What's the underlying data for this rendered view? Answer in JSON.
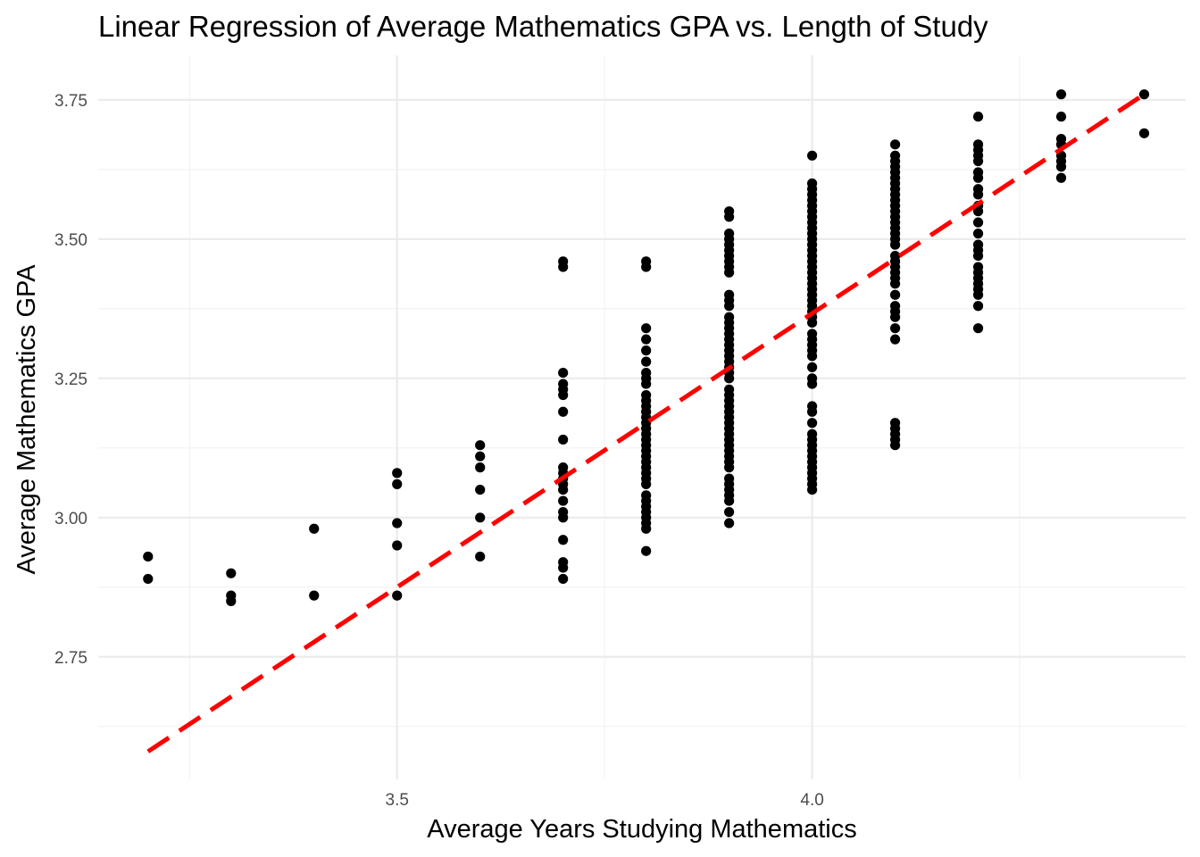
{
  "chart_data": {
    "type": "scatter",
    "title": "Linear Regression of Average Mathematics GPA vs. Length of Study",
    "xlabel": "Average Years Studying Mathematics",
    "ylabel": "Average Mathematics GPA",
    "xlim": [
      3.14,
      4.45
    ],
    "ylim": [
      2.53,
      3.83
    ],
    "x_major_ticks": [
      3.5,
      4.0
    ],
    "x_minor_ticks": [
      3.25,
      3.75,
      4.25
    ],
    "y_major_ticks": [
      2.75,
      3.0,
      3.25,
      3.5,
      3.75
    ],
    "y_minor_ticks": [
      2.625,
      2.875,
      3.125,
      3.375,
      3.625
    ],
    "x_tick_labels": [
      "3.5",
      "4.0"
    ],
    "y_tick_labels": [
      "2.75",
      "3.00",
      "3.25",
      "3.50",
      "3.75"
    ],
    "grid": true,
    "legend": "none",
    "point_color": "#000000",
    "regression_color": "#ff0000",
    "regression_line": {
      "style": "dashed",
      "x": [
        3.2,
        4.4
      ],
      "y": [
        2.58,
        3.76
      ]
    },
    "groups": [
      {
        "x": 3.2,
        "y": [
          2.93,
          2.89
        ]
      },
      {
        "x": 3.3,
        "y": [
          2.9,
          2.86,
          2.85
        ]
      },
      {
        "x": 3.4,
        "y": [
          2.98,
          2.86
        ]
      },
      {
        "x": 3.5,
        "y": [
          3.08,
          3.06,
          2.99,
          2.95,
          2.86
        ]
      },
      {
        "x": 3.6,
        "y": [
          3.13,
          3.11,
          3.09,
          3.05,
          3.0,
          2.93
        ]
      },
      {
        "x": 3.7,
        "y": [
          3.46,
          3.45,
          3.26,
          3.24,
          3.23,
          3.22,
          3.19,
          3.14,
          3.09,
          3.08,
          3.07,
          3.06,
          3.05,
          3.03,
          3.01,
          3.0,
          2.96,
          2.92,
          2.91,
          2.89
        ]
      },
      {
        "x": 3.8,
        "y": [
          3.46,
          3.45,
          3.34,
          3.32,
          3.3,
          3.28,
          3.26,
          3.25,
          3.24,
          3.22,
          3.21,
          3.2,
          3.19,
          3.18,
          3.17,
          3.16,
          3.15,
          3.14,
          3.13,
          3.12,
          3.11,
          3.1,
          3.09,
          3.08,
          3.07,
          3.06,
          3.04,
          3.03,
          3.02,
          3.01,
          3.0,
          2.99,
          2.98,
          2.94
        ]
      },
      {
        "x": 3.9,
        "y": [
          3.55,
          3.54,
          3.51,
          3.5,
          3.49,
          3.48,
          3.47,
          3.46,
          3.45,
          3.44,
          3.4,
          3.39,
          3.38,
          3.36,
          3.35,
          3.34,
          3.33,
          3.32,
          3.31,
          3.3,
          3.29,
          3.28,
          3.27,
          3.26,
          3.25,
          3.23,
          3.22,
          3.21,
          3.2,
          3.19,
          3.18,
          3.17,
          3.16,
          3.15,
          3.14,
          3.13,
          3.12,
          3.11,
          3.1,
          3.09,
          3.07,
          3.06,
          3.05,
          3.04,
          3.03,
          3.01,
          2.99
        ]
      },
      {
        "x": 4.0,
        "y": [
          3.65,
          3.6,
          3.59,
          3.58,
          3.57,
          3.56,
          3.55,
          3.54,
          3.53,
          3.52,
          3.51,
          3.5,
          3.49,
          3.48,
          3.47,
          3.46,
          3.45,
          3.44,
          3.43,
          3.42,
          3.41,
          3.4,
          3.39,
          3.38,
          3.37,
          3.36,
          3.35,
          3.33,
          3.32,
          3.31,
          3.3,
          3.29,
          3.27,
          3.25,
          3.24,
          3.2,
          3.19,
          3.17,
          3.15,
          3.14,
          3.13,
          3.12,
          3.11,
          3.1,
          3.09,
          3.08,
          3.07,
          3.06,
          3.05
        ]
      },
      {
        "x": 4.1,
        "y": [
          3.67,
          3.65,
          3.64,
          3.63,
          3.62,
          3.61,
          3.6,
          3.59,
          3.58,
          3.57,
          3.56,
          3.55,
          3.54,
          3.53,
          3.52,
          3.51,
          3.5,
          3.49,
          3.47,
          3.46,
          3.45,
          3.44,
          3.43,
          3.42,
          3.4,
          3.38,
          3.37,
          3.36,
          3.34,
          3.32,
          3.17,
          3.16,
          3.15,
          3.14,
          3.13
        ]
      },
      {
        "x": 4.2,
        "y": [
          3.72,
          3.67,
          3.66,
          3.65,
          3.64,
          3.62,
          3.61,
          3.59,
          3.58,
          3.56,
          3.55,
          3.53,
          3.51,
          3.49,
          3.48,
          3.47,
          3.45,
          3.44,
          3.43,
          3.42,
          3.41,
          3.4,
          3.38,
          3.34
        ]
      },
      {
        "x": 4.3,
        "y": [
          3.76,
          3.72,
          3.68,
          3.67,
          3.65,
          3.64,
          3.63,
          3.61
        ]
      },
      {
        "x": 4.4,
        "y": [
          3.76,
          3.69
        ]
      }
    ]
  }
}
